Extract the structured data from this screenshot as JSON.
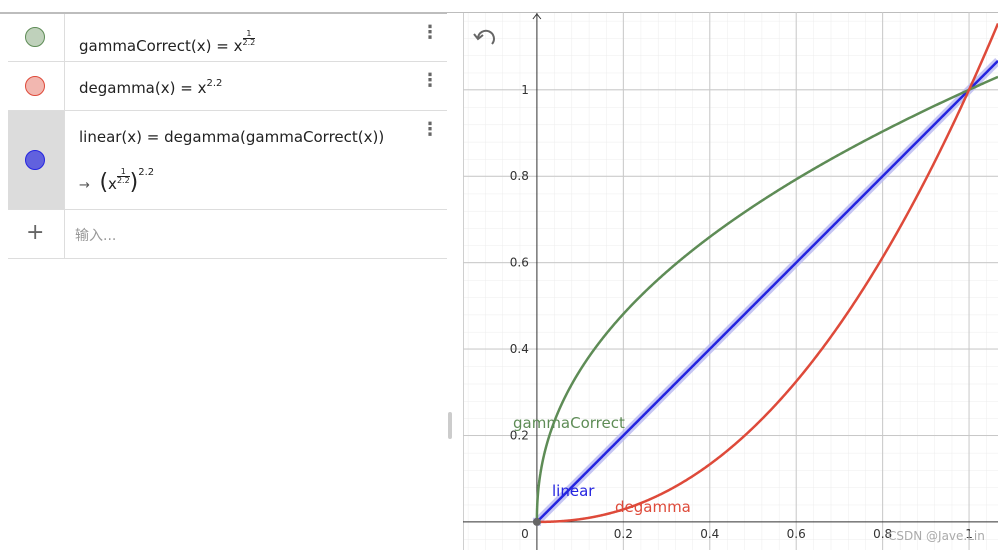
{
  "algebra": {
    "items": [
      {
        "color": "#5e8c56",
        "name": "gammaCorrect(x)",
        "equals": "=",
        "base": "x",
        "exp_num": 1,
        "exp_den": 2.2
      },
      {
        "color": "#de4a3a",
        "name": "degamma(x)",
        "equals": "=",
        "base": "x",
        "exp": 2.2
      },
      {
        "color": "#2424e0",
        "name": "linear(x)",
        "equals": "=",
        "definition": "degamma(gammaCorrect(x))",
        "arrow": "→",
        "base": "x",
        "exp_num": 1,
        "exp_den": 2.2,
        "outer_exp": 2.2
      }
    ],
    "input_placeholder": "输入..."
  },
  "graph": {
    "xlim": [
      -0.171,
      1.067
    ],
    "ylim": [
      -0.065,
      1.18
    ],
    "xticks": [
      0,
      0.2,
      0.4,
      0.6,
      0.8,
      1
    ],
    "yticks": [
      0.2,
      0.4,
      0.6,
      0.8,
      1
    ],
    "labels": [
      "gammaCorrect",
      "degamma",
      "linear"
    ]
  },
  "watermark": "CSDN @Jave.Lin"
}
